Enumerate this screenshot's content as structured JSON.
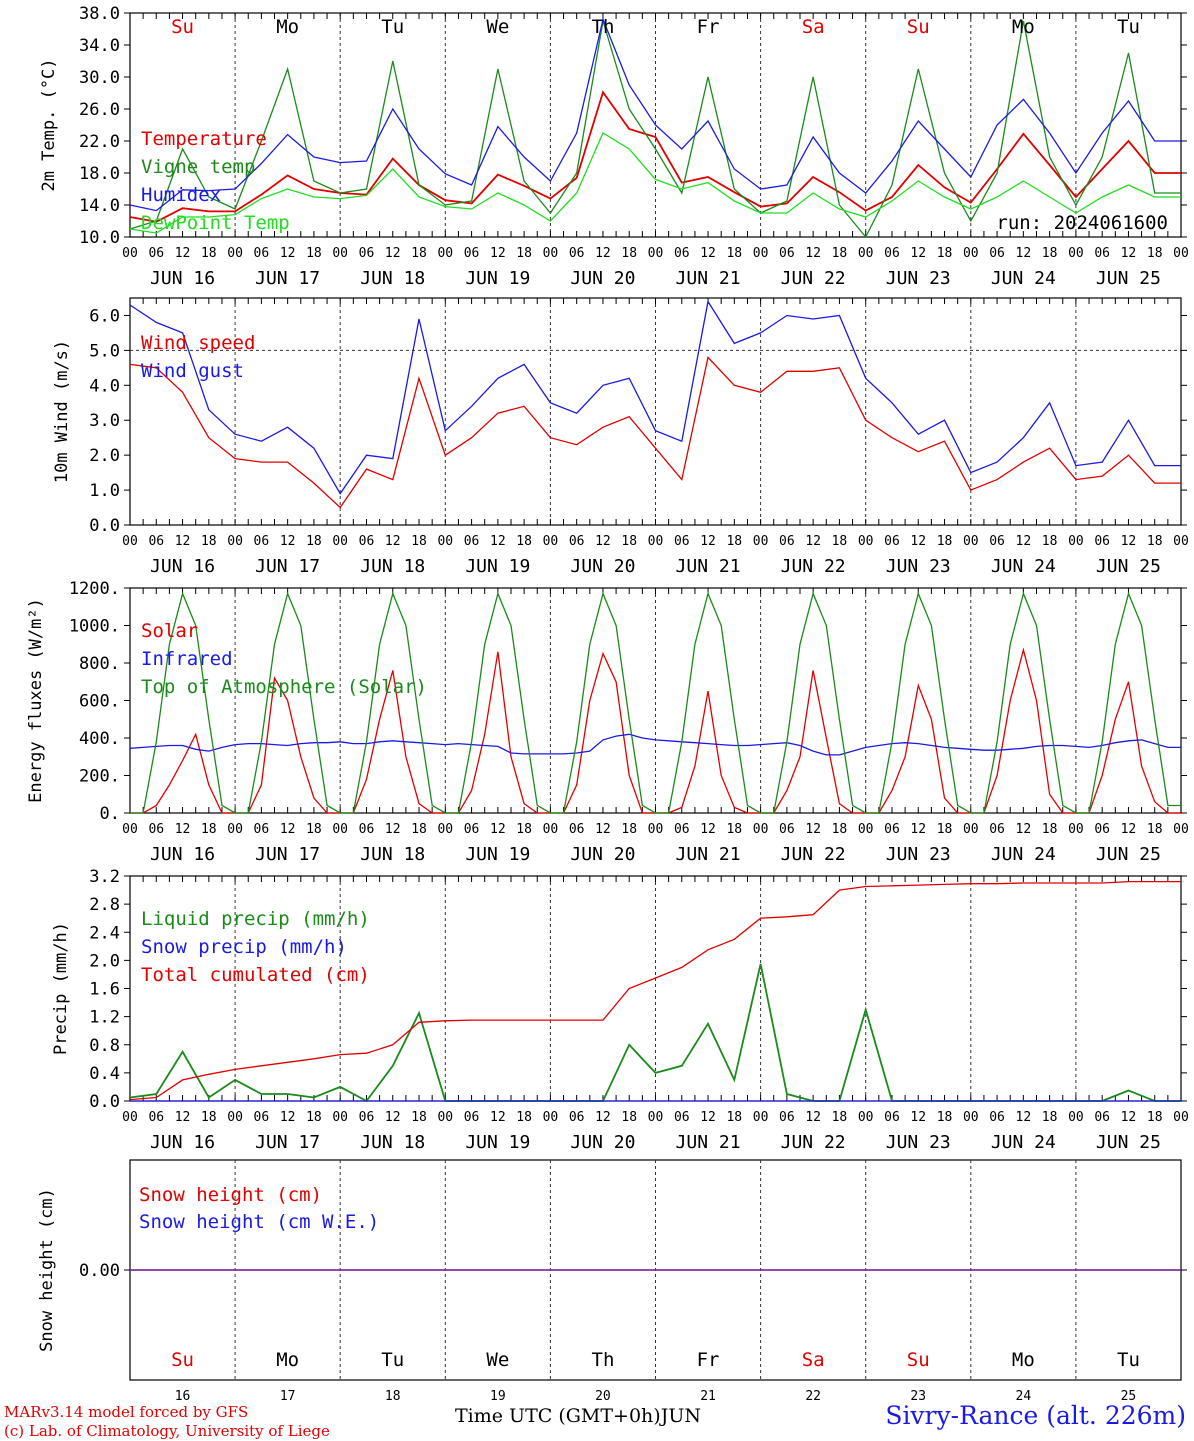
{
  "run_label": "run: 2024061600",
  "days": {
    "top_names": [
      "Su",
      "Mo",
      "Tu",
      "We",
      "Th",
      "Fr",
      "Sa",
      "Su",
      "Mo",
      "Tu"
    ],
    "top_colors": [
      "#e00000",
      "#000000",
      "#000000",
      "#000000",
      "#000000",
      "#000000",
      "#e00000",
      "#e00000",
      "#000000",
      "#000000"
    ],
    "date_labels": [
      "JUN 16",
      "JUN 17",
      "JUN 18",
      "JUN 19",
      "JUN 20",
      "JUN 21",
      "JUN 22",
      "JUN 23",
      "JUN 24",
      "JUN 25"
    ],
    "hour_labels": [
      "00",
      "06",
      "12",
      "18"
    ],
    "end_hour": "00",
    "bottom_numbers": [
      "16",
      "17",
      "18",
      "19",
      "20",
      "21",
      "22",
      "23",
      "24",
      "25"
    ]
  },
  "footer": {
    "model": "MARv3.14 model forced by GFS",
    "lab": "(c) Lab. of Climatology, University of Liege",
    "xlabel": "Time UTC (GMT+0h)",
    "month": "JUN",
    "station": "Sivry-Rance (alt. 226m)"
  },
  "chart_data": [
    {
      "type": "line",
      "ylabel": "2m Temp. (°C)",
      "ylim": [
        10,
        38
      ],
      "yticks": [
        "10.0",
        "14.0",
        "18.0",
        "22.0",
        "26.0",
        "30.0",
        "34.0",
        "38.0"
      ],
      "x_hours": [
        0,
        6,
        12,
        18,
        24,
        30,
        36,
        42,
        48,
        54,
        60,
        66,
        72,
        78,
        84,
        90,
        96,
        102,
        108,
        114,
        120,
        126,
        132,
        138,
        144,
        150,
        156,
        162,
        168,
        174,
        180,
        186,
        192,
        198,
        204,
        210,
        216,
        222,
        228,
        234
      ],
      "legend": [
        "Temperature",
        "Vigne temp",
        "Humidex",
        "DewPoint Temp"
      ],
      "series": [
        {
          "name": "Temperature",
          "color": "#e00000",
          "values": [
            12.5,
            11.9,
            13.6,
            13.2,
            13.2,
            15.3,
            17.7,
            16.0,
            15.5,
            15.3,
            19.8,
            16.5,
            14.6,
            14.2,
            17.8,
            16.4,
            14.8,
            17.4,
            28.1,
            23.5,
            22.5,
            16.8,
            17.5,
            15.6,
            13.8,
            14.2,
            17.5,
            15.6,
            13.3,
            15.0,
            19.0,
            16.2,
            14.3,
            18.5,
            22.9,
            19.0,
            15.0,
            18.5,
            22.0,
            18.0
          ]
        },
        {
          "name": "Vigne temp",
          "color": "#1a8a1a",
          "values": [
            11.0,
            12.0,
            21.0,
            15.0,
            13.5,
            22.0,
            31.0,
            17.0,
            15.5,
            16.0,
            32.0,
            16.5,
            14.0,
            14.5,
            31.0,
            17.0,
            13.0,
            18.0,
            37.0,
            26.0,
            21.0,
            15.5,
            30.0,
            16.0,
            13.0,
            14.5,
            30.0,
            14.0,
            10.0,
            16.5,
            31.0,
            18.0,
            12.0,
            18.0,
            37.0,
            20.0,
            14.0,
            20.0,
            33.0,
            15.5
          ]
        },
        {
          "name": "Humidex",
          "color": "#1a1ae6",
          "values": [
            14.0,
            13.3,
            15.9,
            15.8,
            16.0,
            19.2,
            22.8,
            20.0,
            19.3,
            19.5,
            26.0,
            21.0,
            17.9,
            16.5,
            23.8,
            20.0,
            17.0,
            23.0,
            37.2,
            29.0,
            24.0,
            21.0,
            24.5,
            18.5,
            16.0,
            16.5,
            22.5,
            18.0,
            15.5,
            19.5,
            24.5,
            21.0,
            17.5,
            24.0,
            27.2,
            23.0,
            18.0,
            23.0,
            27.0,
            22.0
          ]
        },
        {
          "name": "DewPoint Temp",
          "color": "#22dd22",
          "values": [
            11.0,
            10.5,
            12.5,
            12.5,
            12.8,
            14.8,
            16.0,
            15.0,
            14.8,
            15.2,
            18.5,
            15.0,
            13.8,
            13.5,
            15.5,
            14.0,
            12.0,
            15.5,
            23.0,
            21.0,
            17.2,
            16.0,
            16.8,
            14.5,
            13.0,
            13.0,
            15.5,
            13.5,
            12.5,
            14.5,
            17.0,
            15.0,
            13.5,
            15.0,
            17.0,
            15.0,
            13.0,
            15.0,
            16.5,
            15.0
          ]
        }
      ]
    },
    {
      "type": "line",
      "ylabel": "10m Wind (m/s)",
      "ylim": [
        0,
        6.5
      ],
      "yticks": [
        "0.0",
        "1.0",
        "2.0",
        "3.0",
        "4.0",
        "5.0",
        "6.0"
      ],
      "x_hours": [
        0,
        6,
        12,
        18,
        24,
        30,
        36,
        42,
        48,
        54,
        60,
        66,
        72,
        78,
        84,
        90,
        96,
        102,
        108,
        114,
        120,
        126,
        132,
        138,
        144,
        150,
        156,
        162,
        168,
        174,
        180,
        186,
        192,
        198,
        204,
        210,
        216,
        222,
        228,
        234
      ],
      "legend": [
        "Wind speed",
        "Wind gust"
      ],
      "series": [
        {
          "name": "Wind speed",
          "color": "#e00000",
          "values": [
            4.6,
            4.5,
            3.8,
            2.5,
            1.9,
            1.8,
            1.8,
            1.2,
            0.5,
            1.6,
            1.3,
            4.2,
            2.0,
            2.5,
            3.2,
            3.4,
            2.5,
            2.3,
            2.8,
            3.1,
            2.2,
            1.3,
            4.8,
            4.0,
            3.8,
            4.4,
            4.4,
            4.5,
            3.0,
            2.5,
            2.1,
            2.4,
            1.0,
            1.3,
            1.8,
            2.2,
            1.3,
            1.4,
            2.0,
            1.2
          ]
        },
        {
          "name": "Wind gust",
          "color": "#1a1ae6",
          "values": [
            6.3,
            5.8,
            5.5,
            3.3,
            2.6,
            2.4,
            2.8,
            2.2,
            0.9,
            2.0,
            1.9,
            5.9,
            2.7,
            3.4,
            4.2,
            4.6,
            3.5,
            3.2,
            4.0,
            4.2,
            2.7,
            2.4,
            6.4,
            5.2,
            5.5,
            6.0,
            5.9,
            6.0,
            4.2,
            3.5,
            2.6,
            3.0,
            1.5,
            1.8,
            2.5,
            3.5,
            1.7,
            1.8,
            3.0,
            1.7
          ]
        }
      ]
    },
    {
      "type": "line",
      "ylabel": "Energy fluxes (W/m²)",
      "ylim": [
        0,
        1200
      ],
      "yticks": [
        "0.",
        "200.",
        "400.",
        "600.",
        "800.",
        "1000.",
        "1200."
      ],
      "x_hours": [
        0,
        3,
        6,
        9,
        12,
        15,
        18,
        21,
        24,
        27,
        30,
        33,
        36,
        39,
        42,
        45,
        48,
        51,
        54,
        57,
        60,
        63,
        66,
        69,
        72,
        75,
        78,
        81,
        84,
        87,
        90,
        93,
        96,
        99,
        102,
        105,
        108,
        111,
        114,
        117,
        120,
        123,
        126,
        129,
        132,
        135,
        138,
        141,
        144,
        147,
        150,
        153,
        156,
        159,
        162,
        165,
        168,
        171,
        174,
        177,
        180,
        183,
        186,
        189,
        192,
        195,
        198,
        201,
        204,
        207,
        210,
        213,
        216,
        219,
        222,
        225,
        228,
        231,
        234,
        237
      ],
      "legend": [
        "Solar",
        "Infrared",
        "Top of Atmosphere (Solar)"
      ],
      "series": [
        {
          "name": "Solar",
          "color": "#e00000",
          "values": [
            0,
            0,
            40,
            150,
            280,
            420,
            150,
            0,
            0,
            0,
            150,
            720,
            600,
            300,
            80,
            0,
            0,
            0,
            180,
            500,
            760,
            300,
            50,
            0,
            0,
            0,
            120,
            420,
            860,
            300,
            50,
            0,
            0,
            0,
            150,
            600,
            850,
            700,
            200,
            0,
            0,
            0,
            30,
            250,
            650,
            200,
            30,
            0,
            0,
            0,
            120,
            300,
            760,
            400,
            50,
            0,
            0,
            0,
            120,
            300,
            680,
            500,
            80,
            0,
            0,
            0,
            200,
            600,
            870,
            600,
            100,
            0,
            0,
            0,
            200,
            500,
            700,
            250,
            60,
            0
          ]
        },
        {
          "name": "Infrared",
          "color": "#1a1ae6",
          "values": [
            345,
            350,
            355,
            360,
            360,
            340,
            330,
            350,
            365,
            370,
            370,
            365,
            360,
            370,
            375,
            375,
            380,
            370,
            370,
            380,
            385,
            380,
            375,
            370,
            365,
            370,
            365,
            360,
            355,
            320,
            315,
            315,
            315,
            315,
            320,
            330,
            390,
            410,
            420,
            400,
            390,
            385,
            380,
            375,
            370,
            365,
            360,
            360,
            365,
            370,
            375,
            360,
            330,
            310,
            310,
            330,
            350,
            360,
            370,
            375,
            370,
            360,
            350,
            345,
            340,
            335,
            335,
            340,
            345,
            355,
            360,
            360,
            355,
            350,
            360,
            375,
            385,
            390,
            370,
            350
          ]
        },
        {
          "name": "Top of Atmosphere (Solar)",
          "color": "#1a8a1a",
          "values": [
            0,
            0,
            380,
            900,
            1170,
            1000,
            500,
            40,
            0,
            0,
            380,
            900,
            1170,
            1000,
            500,
            40,
            0,
            0,
            380,
            900,
            1170,
            1000,
            500,
            40,
            0,
            0,
            380,
            900,
            1170,
            1000,
            500,
            40,
            0,
            0,
            380,
            900,
            1170,
            1000,
            500,
            40,
            0,
            0,
            380,
            900,
            1170,
            1000,
            500,
            40,
            0,
            0,
            380,
            900,
            1170,
            1000,
            500,
            40,
            0,
            0,
            380,
            900,
            1170,
            1000,
            500,
            40,
            0,
            0,
            380,
            900,
            1170,
            1000,
            500,
            40,
            0,
            0,
            380,
            900,
            1170,
            1000,
            500,
            40
          ]
        }
      ]
    },
    {
      "type": "line",
      "ylabel": "Precip (mm/h)",
      "ylim": [
        0,
        3.2
      ],
      "yticks": [
        "0.0",
        "0.4",
        "0.8",
        "1.2",
        "1.6",
        "2.0",
        "2.4",
        "2.8",
        "3.2"
      ],
      "x_hours": [
        0,
        6,
        12,
        18,
        24,
        30,
        36,
        42,
        48,
        54,
        60,
        66,
        72,
        78,
        84,
        90,
        96,
        102,
        108,
        114,
        120,
        126,
        132,
        138,
        144,
        150,
        156,
        162,
        168,
        174,
        180,
        186,
        192,
        198,
        204,
        210,
        216,
        222,
        228,
        234
      ],
      "legend": [
        "Liquid precip (mm/h)",
        "Snow precip (mm/h)",
        "Total cumulated (cm)"
      ],
      "series": [
        {
          "name": "Liquid precip (mm/h)",
          "color": "#1a8a1a",
          "values": [
            0.05,
            0.1,
            0.7,
            0.05,
            0.3,
            0.1,
            0.1,
            0.05,
            0.2,
            0.0,
            0.5,
            1.25,
            0.0,
            0.0,
            0.0,
            0.0,
            0.0,
            0.0,
            0.0,
            0.8,
            0.4,
            0.5,
            1.1,
            0.3,
            1.95,
            0.1,
            0.0,
            0.0,
            1.3,
            0.0,
            0.0,
            0.0,
            0.0,
            0.0,
            0.0,
            0.0,
            0.0,
            0.0,
            0.15,
            0.0
          ]
        },
        {
          "name": "Snow precip (mm/h)",
          "color": "#1a1ae6",
          "values": [
            0,
            0,
            0,
            0,
            0,
            0,
            0,
            0,
            0,
            0,
            0,
            0,
            0,
            0,
            0,
            0,
            0,
            0,
            0,
            0,
            0,
            0,
            0,
            0,
            0,
            0,
            0,
            0,
            0,
            0,
            0,
            0,
            0,
            0,
            0,
            0,
            0,
            0,
            0,
            0
          ]
        },
        {
          "name": "Total cumulated (cm)",
          "color": "#e00000",
          "values": [
            0.02,
            0.05,
            0.3,
            0.38,
            0.45,
            0.5,
            0.55,
            0.6,
            0.66,
            0.68,
            0.8,
            1.12,
            1.14,
            1.15,
            1.15,
            1.15,
            1.15,
            1.15,
            1.15,
            1.6,
            1.75,
            1.9,
            2.15,
            2.3,
            2.6,
            2.62,
            2.65,
            3.0,
            3.05,
            3.06,
            3.07,
            3.08,
            3.09,
            3.09,
            3.1,
            3.1,
            3.1,
            3.1,
            3.12,
            3.12
          ]
        }
      ]
    },
    {
      "type": "line",
      "ylabel": "Snow height (cm)",
      "yticks": [
        "0.00"
      ],
      "legend": [
        "Snow height (cm)",
        "Snow height (cm W.E.)"
      ],
      "series": [
        {
          "name": "Snow height (cm)",
          "color": "#e00000",
          "values": [
            0,
            0
          ]
        },
        {
          "name": "Snow height (cm W.E.)",
          "color": "#1a1ae6",
          "values": [
            0,
            0
          ]
        }
      ]
    }
  ]
}
